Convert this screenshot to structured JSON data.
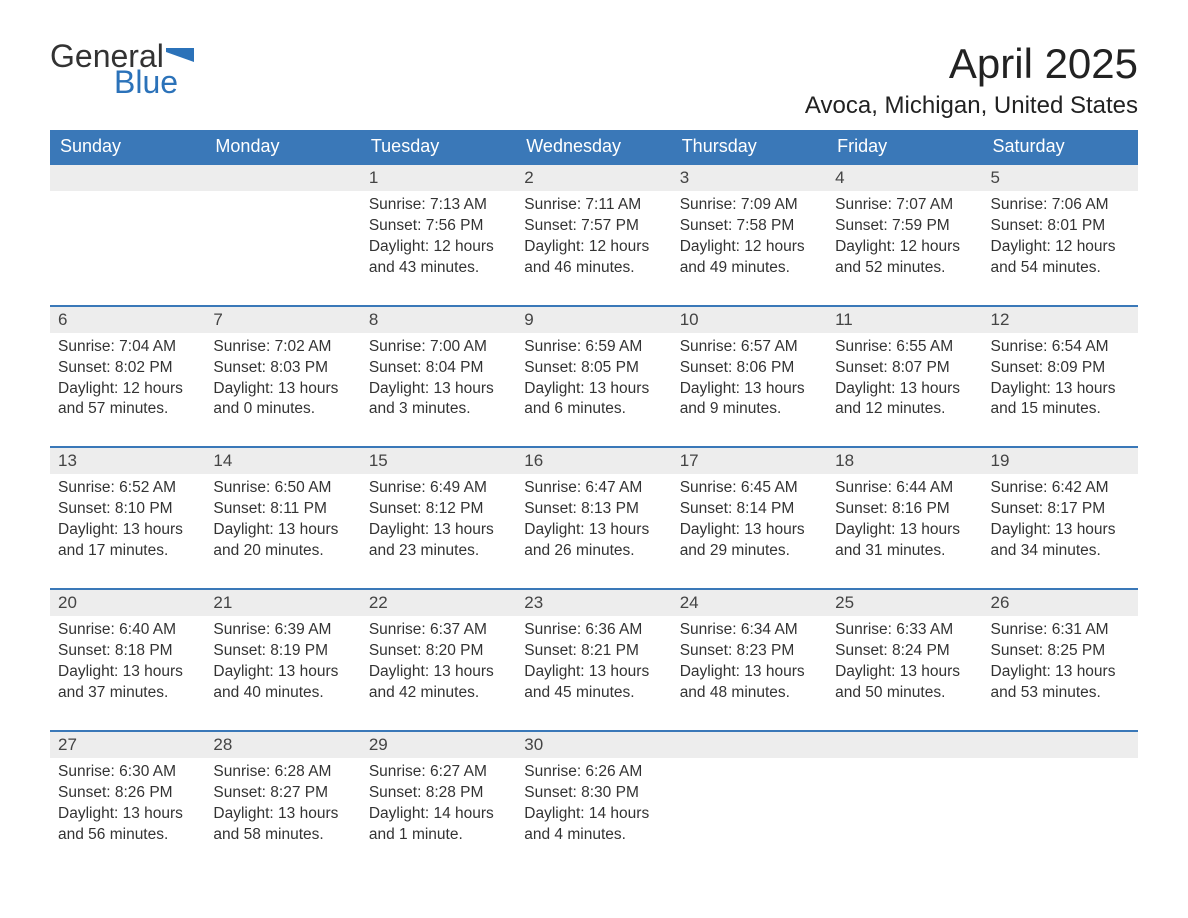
{
  "logo": {
    "text1": "General",
    "text2": "Blue",
    "flag_color": "#2b72b9"
  },
  "title": "April 2025",
  "location": "Avoca, Michigan, United States",
  "colors": {
    "header_bg": "#3a78b8",
    "header_text": "#ffffff",
    "daynum_bg": "#ededed",
    "border": "#3a78b8",
    "text": "#333333"
  },
  "day_labels": [
    "Sunday",
    "Monday",
    "Tuesday",
    "Wednesday",
    "Thursday",
    "Friday",
    "Saturday"
  ],
  "weeks": [
    [
      null,
      null,
      {
        "n": "1",
        "sunrise": "7:13 AM",
        "sunset": "7:56 PM",
        "daylight": "12 hours and 43 minutes."
      },
      {
        "n": "2",
        "sunrise": "7:11 AM",
        "sunset": "7:57 PM",
        "daylight": "12 hours and 46 minutes."
      },
      {
        "n": "3",
        "sunrise": "7:09 AM",
        "sunset": "7:58 PM",
        "daylight": "12 hours and 49 minutes."
      },
      {
        "n": "4",
        "sunrise": "7:07 AM",
        "sunset": "7:59 PM",
        "daylight": "12 hours and 52 minutes."
      },
      {
        "n": "5",
        "sunrise": "7:06 AM",
        "sunset": "8:01 PM",
        "daylight": "12 hours and 54 minutes."
      }
    ],
    [
      {
        "n": "6",
        "sunrise": "7:04 AM",
        "sunset": "8:02 PM",
        "daylight": "12 hours and 57 minutes."
      },
      {
        "n": "7",
        "sunrise": "7:02 AM",
        "sunset": "8:03 PM",
        "daylight": "13 hours and 0 minutes."
      },
      {
        "n": "8",
        "sunrise": "7:00 AM",
        "sunset": "8:04 PM",
        "daylight": "13 hours and 3 minutes."
      },
      {
        "n": "9",
        "sunrise": "6:59 AM",
        "sunset": "8:05 PM",
        "daylight": "13 hours and 6 minutes."
      },
      {
        "n": "10",
        "sunrise": "6:57 AM",
        "sunset": "8:06 PM",
        "daylight": "13 hours and 9 minutes."
      },
      {
        "n": "11",
        "sunrise": "6:55 AM",
        "sunset": "8:07 PM",
        "daylight": "13 hours and 12 minutes."
      },
      {
        "n": "12",
        "sunrise": "6:54 AM",
        "sunset": "8:09 PM",
        "daylight": "13 hours and 15 minutes."
      }
    ],
    [
      {
        "n": "13",
        "sunrise": "6:52 AM",
        "sunset": "8:10 PM",
        "daylight": "13 hours and 17 minutes."
      },
      {
        "n": "14",
        "sunrise": "6:50 AM",
        "sunset": "8:11 PM",
        "daylight": "13 hours and 20 minutes."
      },
      {
        "n": "15",
        "sunrise": "6:49 AM",
        "sunset": "8:12 PM",
        "daylight": "13 hours and 23 minutes."
      },
      {
        "n": "16",
        "sunrise": "6:47 AM",
        "sunset": "8:13 PM",
        "daylight": "13 hours and 26 minutes."
      },
      {
        "n": "17",
        "sunrise": "6:45 AM",
        "sunset": "8:14 PM",
        "daylight": "13 hours and 29 minutes."
      },
      {
        "n": "18",
        "sunrise": "6:44 AM",
        "sunset": "8:16 PM",
        "daylight": "13 hours and 31 minutes."
      },
      {
        "n": "19",
        "sunrise": "6:42 AM",
        "sunset": "8:17 PM",
        "daylight": "13 hours and 34 minutes."
      }
    ],
    [
      {
        "n": "20",
        "sunrise": "6:40 AM",
        "sunset": "8:18 PM",
        "daylight": "13 hours and 37 minutes."
      },
      {
        "n": "21",
        "sunrise": "6:39 AM",
        "sunset": "8:19 PM",
        "daylight": "13 hours and 40 minutes."
      },
      {
        "n": "22",
        "sunrise": "6:37 AM",
        "sunset": "8:20 PM",
        "daylight": "13 hours and 42 minutes."
      },
      {
        "n": "23",
        "sunrise": "6:36 AM",
        "sunset": "8:21 PM",
        "daylight": "13 hours and 45 minutes."
      },
      {
        "n": "24",
        "sunrise": "6:34 AM",
        "sunset": "8:23 PM",
        "daylight": "13 hours and 48 minutes."
      },
      {
        "n": "25",
        "sunrise": "6:33 AM",
        "sunset": "8:24 PM",
        "daylight": "13 hours and 50 minutes."
      },
      {
        "n": "26",
        "sunrise": "6:31 AM",
        "sunset": "8:25 PM",
        "daylight": "13 hours and 53 minutes."
      }
    ],
    [
      {
        "n": "27",
        "sunrise": "6:30 AM",
        "sunset": "8:26 PM",
        "daylight": "13 hours and 56 minutes."
      },
      {
        "n": "28",
        "sunrise": "6:28 AM",
        "sunset": "8:27 PM",
        "daylight": "13 hours and 58 minutes."
      },
      {
        "n": "29",
        "sunrise": "6:27 AM",
        "sunset": "8:28 PM",
        "daylight": "14 hours and 1 minute."
      },
      {
        "n": "30",
        "sunrise": "6:26 AM",
        "sunset": "8:30 PM",
        "daylight": "14 hours and 4 minutes."
      },
      null,
      null,
      null
    ]
  ],
  "labels": {
    "sunrise": "Sunrise:",
    "sunset": "Sunset:",
    "daylight": "Daylight:"
  }
}
